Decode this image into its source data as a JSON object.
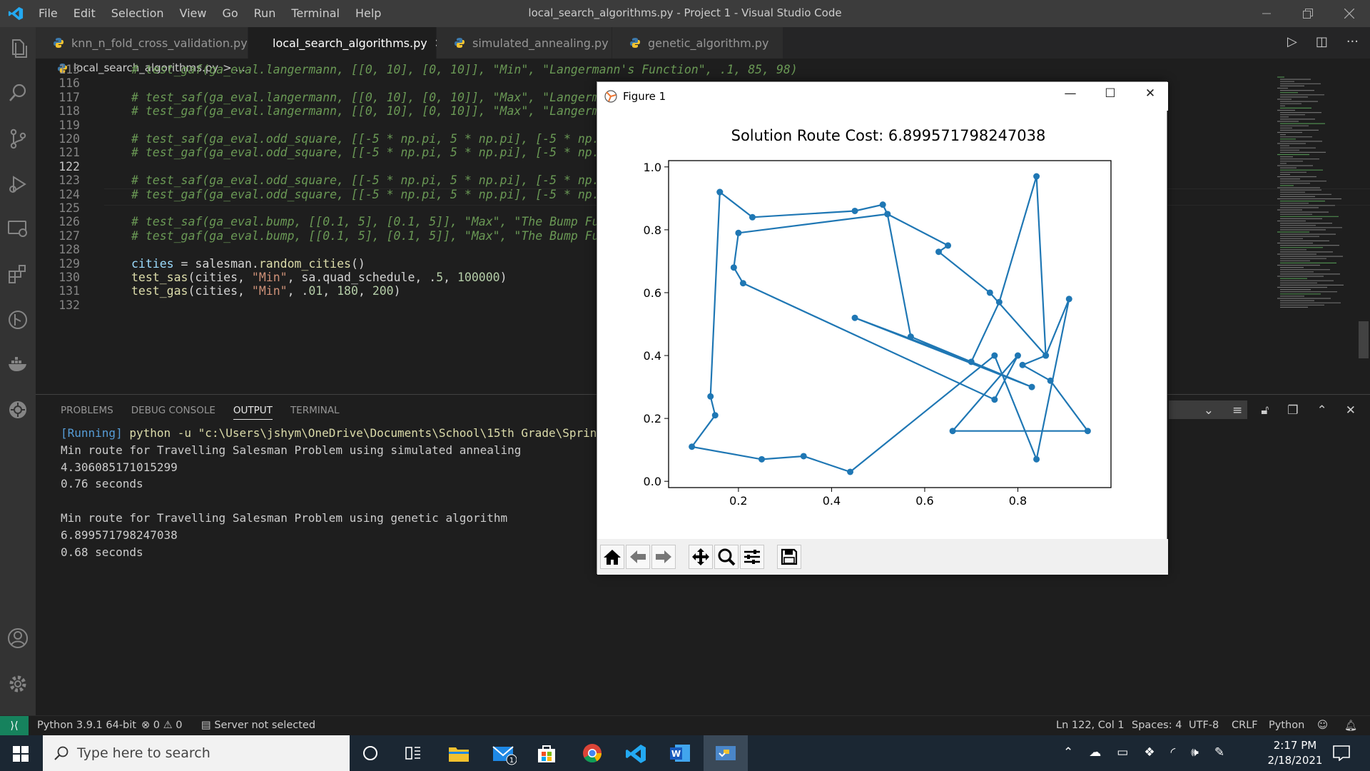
{
  "window": {
    "title": "local_search_algorithms.py - Project 1 - Visual Studio Code",
    "menu": [
      "File",
      "Edit",
      "Selection",
      "View",
      "Go",
      "Run",
      "Terminal",
      "Help"
    ]
  },
  "tabs": [
    {
      "label": "knn_n_fold_cross_validation.py",
      "active": false
    },
    {
      "label": "local_search_algorithms.py",
      "active": true
    },
    {
      "label": "simulated_annealing.py",
      "active": false
    },
    {
      "label": "genetic_algorithm.py",
      "active": false
    }
  ],
  "breadcrumb": {
    "file": "local_search_algorithms.py",
    "rest": "> ..."
  },
  "editor": {
    "current_line": 122,
    "lines": [
      {
        "n": "115",
        "text": "# test_gaf(ga_eval.langermann, [[0, 10], [0, 10]], \"Min\", \"Langermann's Function\", .1, 85, 98)"
      },
      {
        "n": "116",
        "text": ""
      },
      {
        "n": "117",
        "text": "# test_saf(ga_eval.langermann, [[0, 10], [0, 10]], \"Max\", \"Langermar"
      },
      {
        "n": "118",
        "text": "# test_gaf(ga_eval.langermann, [[0, 10], [0, 10]], \"Max\", \"Langermar"
      },
      {
        "n": "119",
        "text": ""
      },
      {
        "n": "120",
        "text": "# test_saf(ga_eval.odd_square, [[-5 * np.pi, 5 * np.pi], [-5 * np.pi"
      },
      {
        "n": "121",
        "text": "# test_gaf(ga_eval.odd_square, [[-5 * np.pi, 5 * np.pi], [-5 * np.pi"
      },
      {
        "n": "122",
        "text": ""
      },
      {
        "n": "123",
        "text": "# test_saf(ga_eval.odd_square, [[-5 * np.pi, 5 * np.pi], [-5 * np.pi"
      },
      {
        "n": "124",
        "text": "# test_gaf(ga_eval.odd_square, [[-5 * np.pi, 5 * np.pi], [-5 * np.pi"
      },
      {
        "n": "125",
        "text": ""
      },
      {
        "n": "126",
        "text": "# test_saf(ga_eval.bump, [[0.1, 5], [0.1, 5]], \"Max\", \"The Bump Func"
      },
      {
        "n": "127",
        "text": "# test_gaf(ga_eval.bump, [[0.1, 5], [0.1, 5]], \"Max\", \"The Bump Func"
      },
      {
        "n": "128",
        "text": ""
      },
      {
        "n": "129",
        "text": "cities = salesman.random_cities()"
      },
      {
        "n": "130",
        "text": "test_sas(cities, \"Min\", sa.quad_schedule, .5, 100000)"
      },
      {
        "n": "131",
        "text": "test_gas(cities, \"Min\", .01, 180, 200)"
      },
      {
        "n": "132",
        "text": ""
      }
    ]
  },
  "panel": {
    "tabs": [
      "PROBLEMS",
      "DEBUG CONSOLE",
      "OUTPUT",
      "TERMINAL"
    ],
    "active_tab": "OUTPUT",
    "output": {
      "running": "[Running]",
      "command": "python -u \"c:\\Users\\jshym\\OneDrive\\Documents\\School\\15th Grade\\Sprin",
      "lines": [
        "Min route for Travelling Salesman Problem using simulated annealing",
        "4.306085171015299",
        "0.76 seconds",
        "",
        "Min route for Travelling Salesman Problem using genetic algorithm",
        "6.899571798247038",
        "0.68 seconds"
      ]
    }
  },
  "statusbar": {
    "python": "Python 3.9.1 64-bit",
    "errors": "0",
    "warnings": "0",
    "server": "Server not selected",
    "position": "Ln 122, Col 1",
    "spaces": "Spaces: 4",
    "encoding": "UTF-8",
    "eol": "CRLF",
    "language": "Python"
  },
  "taskbar": {
    "search_placeholder": "Type here to search",
    "time": "2:17 PM",
    "date": "2/18/2021",
    "mail_badge": "1"
  },
  "figure": {
    "window_title": "Figure 1",
    "colors": {
      "series": "#1f77b4"
    },
    "toolbar": [
      "home-icon",
      "back-icon",
      "forward-icon",
      "pan-icon",
      "zoom-icon",
      "configure-icon",
      "save-icon"
    ]
  },
  "chart_data": {
    "type": "line",
    "title": "Solution Route Cost: 6.899571798247038",
    "xlabel": "",
    "ylabel": "",
    "xlim": [
      0.05,
      1.0
    ],
    "ylim": [
      -0.02,
      1.02
    ],
    "xticks": [
      "0.2",
      "0.4",
      "0.6",
      "0.8"
    ],
    "yticks": [
      "0.0",
      "0.2",
      "0.4",
      "0.6",
      "0.8",
      "1.0"
    ],
    "grid": false,
    "marker": "o",
    "x": [
      0.16,
      0.23,
      0.45,
      0.51,
      0.52,
      0.65,
      0.63,
      0.74,
      0.86,
      0.84,
      0.76,
      0.7,
      0.45,
      0.83,
      0.57,
      0.52,
      0.2,
      0.19,
      0.21,
      0.75,
      0.8,
      0.66,
      0.95,
      0.87,
      0.81,
      0.86,
      0.91,
      0.84,
      0.75,
      0.44,
      0.34,
      0.25,
      0.1,
      0.15,
      0.14,
      0.16
    ],
    "y": [
      0.92,
      0.84,
      0.86,
      0.88,
      0.85,
      0.75,
      0.73,
      0.6,
      0.4,
      0.97,
      0.57,
      0.38,
      0.52,
      0.3,
      0.46,
      0.85,
      0.79,
      0.68,
      0.63,
      0.26,
      0.4,
      0.16,
      0.16,
      0.32,
      0.37,
      0.4,
      0.58,
      0.07,
      0.4,
      0.03,
      0.08,
      0.07,
      0.11,
      0.21,
      0.27,
      0.92
    ]
  }
}
